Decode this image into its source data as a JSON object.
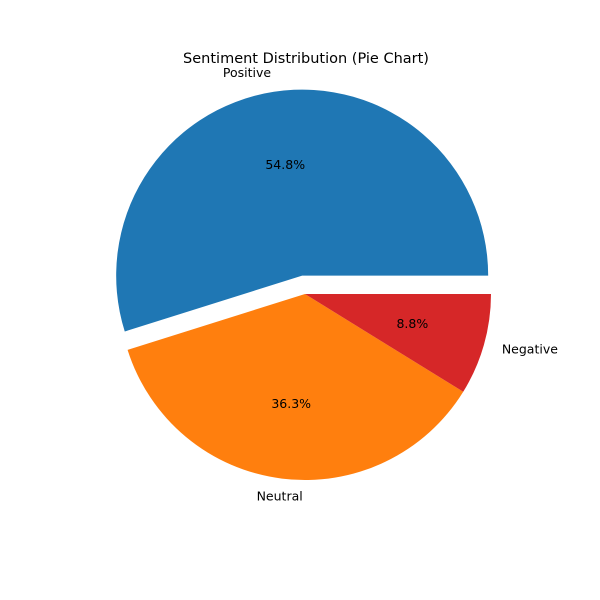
{
  "chart_data": {
    "type": "pie",
    "title": "Sentiment Distribution (Pie Chart)",
    "slices": [
      {
        "label": "Positive",
        "value": 54.8,
        "pct_label": "54.8%",
        "color": "#1f77b4",
        "explode": 0.1
      },
      {
        "label": "Neutral",
        "value": 36.3,
        "pct_label": "36.3%",
        "color": "#ff7f0e",
        "explode": 0
      },
      {
        "label": "Negative",
        "value": 8.8,
        "pct_label": "8.8%",
        "color": "#d62728",
        "explode": 0
      }
    ],
    "start_angle": 0,
    "direction": "counterclockwise",
    "legend": "none"
  }
}
